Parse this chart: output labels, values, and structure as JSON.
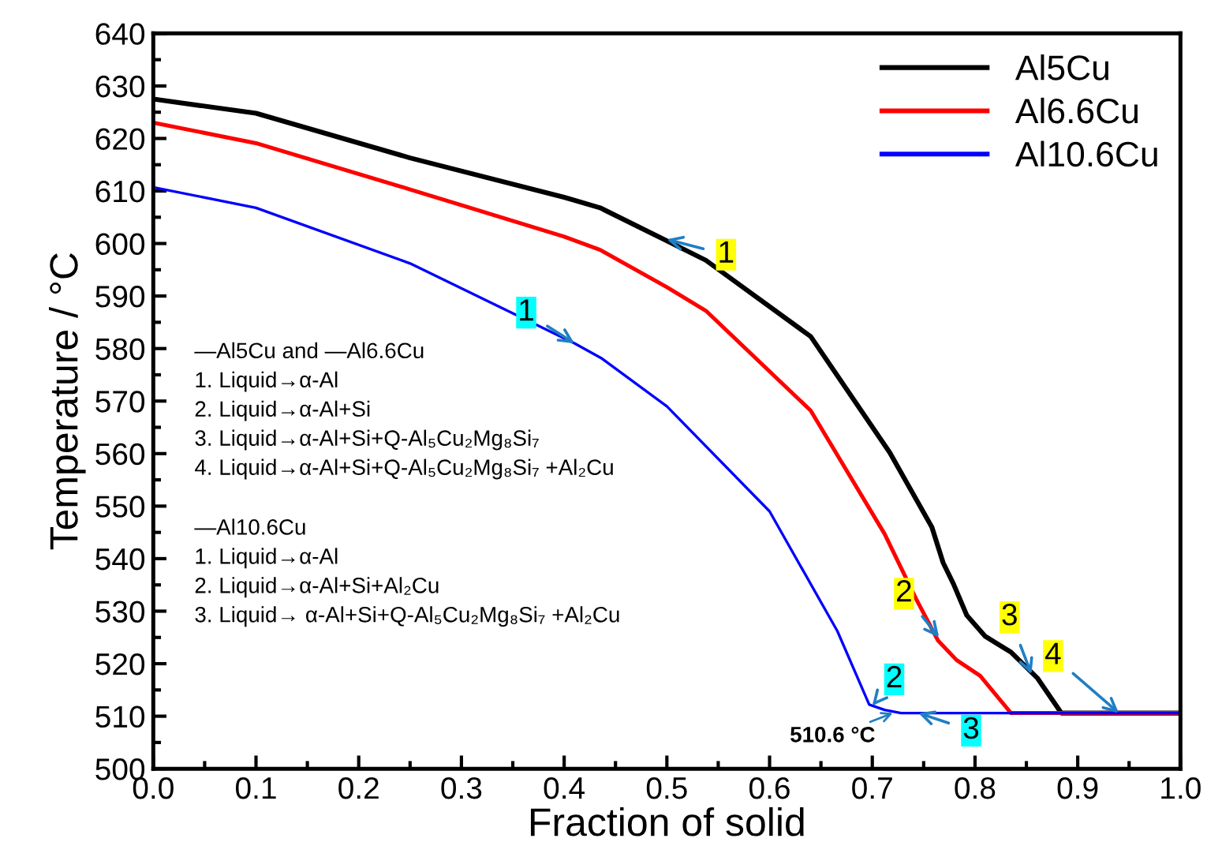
{
  "chart_data": {
    "type": "line",
    "xlabel": "Fraction of solid",
    "ylabel": "Temperature / °C",
    "xlim": [
      0,
      1
    ],
    "ylim": [
      500,
      640
    ],
    "xticks": [
      {
        "value": 0,
        "label": "0.0"
      },
      0.1,
      0.2,
      0.3,
      0.4,
      0.5,
      0.6,
      0.7,
      0.8,
      0.9,
      {
        "value": 1,
        "label": "1.0"
      }
    ],
    "yticks": [
      500,
      510,
      520,
      530,
      540,
      550,
      560,
      570,
      580,
      590,
      600,
      610,
      620,
      630,
      640
    ],
    "grid": false,
    "legend": "top right",
    "marker": "none",
    "line_style": "solid",
    "series": [
      {
        "name": "Al5Cu",
        "color": "#000000",
        "x": [
          0,
          0.1,
          0.25,
          0.4,
          0.435,
          0.497,
          0.538,
          0.64,
          0.717,
          0.758,
          0.769,
          0.779,
          0.792,
          0.81,
          0.835,
          0.861,
          0.884,
          1.0
        ],
        "values": [
          627.5,
          624.8,
          616.3,
          608.8,
          606.8,
          600.8,
          596.8,
          582.3,
          560.2,
          546,
          539.2,
          535.2,
          529.2,
          525.2,
          522.2,
          517.2,
          510.6,
          510.6
        ]
      },
      {
        "name": "Al6.6Cu",
        "color": "#ff0000",
        "x": [
          0,
          0.1,
          0.25,
          0.4,
          0.435,
          0.5,
          0.538,
          0.64,
          0.712,
          0.743,
          0.764,
          0.782,
          0.805,
          0.835,
          1.0
        ],
        "values": [
          623,
          619.1,
          610.3,
          601.3,
          598.8,
          591.7,
          587.2,
          568.2,
          544.7,
          532.2,
          524.4,
          520.7,
          517.7,
          510.6,
          510.6
        ]
      },
      {
        "name": "Al10.6Cu",
        "color": "#0000ff",
        "x": [
          0,
          0.1,
          0.25,
          0.41,
          0.436,
          0.5,
          0.6,
          0.666,
          0.697,
          0.712,
          0.728,
          1.0
        ],
        "values": [
          610.7,
          606.8,
          596.2,
          581,
          578.2,
          569,
          549,
          526.2,
          512.2,
          511.2,
          510.6,
          510.6
        ]
      }
    ],
    "annotations": [
      "—Al5Cu and —Al6.6Cu\n1. Liquid→α-Al\n2. Liquid→α-Al+Si\n3. Liquid→α-Al+Si+Q-Al₅Cu₂Mg₈Si₇\n4. Liquid→α-Al+Si+Q-Al₅Cu₂Mg₈Si₇ +Al₂Cu",
      "—Al10.6Cu\n1. Liquid→α-Al\n2. Liquid→α-Al+Si+Al₂Cu\n3. Liquid→ α-Al+Si+Q-Al₅Cu₂Mg₈Si₇ +Al₂Cu",
      {
        "text": "1",
        "x": 0.5,
        "y": 600.8
      },
      {
        "text": "1",
        "x": 0.41,
        "y": 581
      },
      {
        "text": "2",
        "x": 0.765,
        "y": 525
      },
      {
        "text": "3",
        "x": 0.855,
        "y": 518
      },
      {
        "text": "4",
        "x": 0.94,
        "y": 510.6
      },
      {
        "text": "2",
        "x": 0.7,
        "y": 512
      },
      {
        "text": "3",
        "x": 0.745,
        "y": 510.6
      },
      {
        "text": "510.6 °C",
        "x": 0.72,
        "y": 510.6
      }
    ]
  }
}
